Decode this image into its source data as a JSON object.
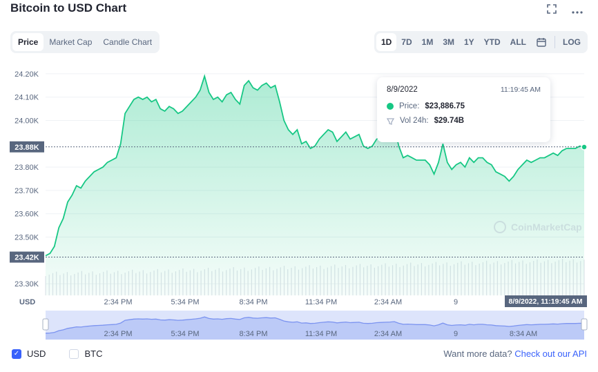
{
  "title": "Bitcoin to USD Chart",
  "icons": {
    "fullscreen": "fullscreen-icon",
    "more": "more-icon"
  },
  "tabs": [
    {
      "label": "Price",
      "active": true
    },
    {
      "label": "Market Cap",
      "active": false
    },
    {
      "label": "Candle Chart",
      "active": false
    }
  ],
  "ranges": [
    {
      "label": "1D",
      "active": true
    },
    {
      "label": "7D",
      "active": false
    },
    {
      "label": "1M",
      "active": false
    },
    {
      "label": "3M",
      "active": false
    },
    {
      "label": "1Y",
      "active": false
    },
    {
      "label": "YTD",
      "active": false
    },
    {
      "label": "ALL",
      "active": false
    }
  ],
  "log_label": "LOG",
  "tooltip": {
    "date": "8/9/2022",
    "time": "11:19:45 AM",
    "price_label": "Price:",
    "price_value": "$23,886.75",
    "vol_label": "Vol 24h:",
    "vol_value": "$29.74B"
  },
  "watermark": "CoinMarketCap",
  "currency_toggle": {
    "usd": "USD",
    "btc": "BTC"
  },
  "api_text": "Want more data?",
  "api_link": "Check out our API",
  "colors": {
    "line": "#16c784",
    "accent": "#3861fb",
    "navigator": "#7b93f0"
  },
  "chart_data": {
    "type": "line",
    "ylabel": "USD",
    "ylim": [
      23250,
      24250
    ],
    "yticks": [
      {
        "v": 24200,
        "label": "24.20K"
      },
      {
        "v": 24100,
        "label": "24.10K"
      },
      {
        "v": 24000,
        "label": "24.00K"
      },
      {
        "v": 23800,
        "label": "23.80K"
      },
      {
        "v": 23700,
        "label": "23.70K"
      },
      {
        "v": 23600,
        "label": "23.60K"
      },
      {
        "v": 23500,
        "label": "23.50K"
      },
      {
        "v": 23300,
        "label": "23.30K"
      }
    ],
    "xticks": [
      "2:34 PM",
      "5:34 PM",
      "8:34 PM",
      "11:34 PM",
      "2:34 AM",
      "9",
      "8:34 AM"
    ],
    "current_label": "23.88K",
    "current_value": 23886.75,
    "low_label": "23.42K",
    "low_value": 23420,
    "cursor_label": "8/9/2022, 11:19:45 AM",
    "series": [
      {
        "values": [
          23420,
          23430,
          23460,
          23540,
          23580,
          23650,
          23680,
          23720,
          23710,
          23740,
          23760,
          23780,
          23790,
          23800,
          23820,
          23830,
          23840,
          23900,
          24030,
          24060,
          24090,
          24100,
          24090,
          24100,
          24080,
          24090,
          24050,
          24040,
          24060,
          24050,
          24030,
          24040,
          24060,
          24080,
          24100,
          24130,
          24190,
          24120,
          24090,
          24100,
          24080,
          24110,
          24120,
          24090,
          24070,
          24150,
          24170,
          24140,
          24130,
          24150,
          24160,
          24140,
          24150,
          24080,
          24000,
          23960,
          23940,
          23960,
          23900,
          23910,
          23880,
          23890,
          23920,
          23940,
          23960,
          23950,
          23910,
          23930,
          23950,
          23920,
          23930,
          23940,
          23890,
          23880,
          23890,
          23920,
          23930,
          23940,
          23950,
          23970,
          23890,
          23840,
          23850,
          23840,
          23830,
          23830,
          23830,
          23810,
          23770,
          23820,
          23900,
          23820,
          23790,
          23810,
          23820,
          23800,
          23840,
          23820,
          23840,
          23840,
          23820,
          23810,
          23780,
          23770,
          23760,
          23740,
          23760,
          23790,
          23810,
          23830,
          23820,
          23830,
          23840,
          23840,
          23850,
          23860,
          23850,
          23870,
          23880,
          23880,
          23880,
          23890,
          23886
        ]
      }
    ]
  }
}
